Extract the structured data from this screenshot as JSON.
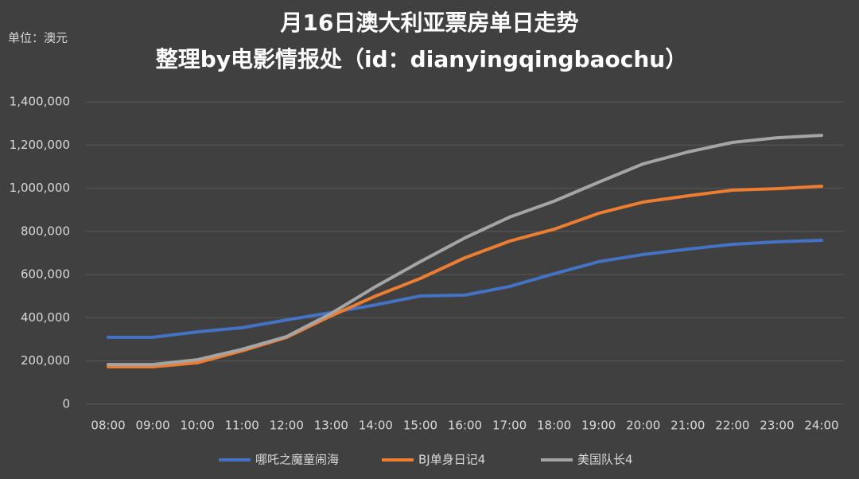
{
  "chart_data": {
    "type": "line",
    "title": "月16日澳大利亚票房单日走势",
    "subtitle": "整理by电影情报处（id：dianyingqingbaochu）",
    "unit_label": "单位：澳元",
    "categories": [
      "08:00",
      "09:00",
      "10:00",
      "11:00",
      "12:00",
      "13:00",
      "14:00",
      "15:00",
      "16:00",
      "17:00",
      "18:00",
      "19:00",
      "20:00",
      "21:00",
      "22:00",
      "23:00",
      "24:00"
    ],
    "series": [
      {
        "name": "哪吒之魔童闹海",
        "color": "#4472c4",
        "values": [
          310000,
          310000,
          335000,
          354000,
          390000,
          424000,
          460000,
          501000,
          505000,
          545000,
          604000,
          660000,
          693000,
          718000,
          740000,
          752000,
          759000
        ]
      },
      {
        "name": "BJ单身日记4",
        "color": "#ed7d31",
        "values": [
          173000,
          173000,
          192000,
          247000,
          309000,
          409000,
          501000,
          582000,
          678000,
          755000,
          810000,
          884000,
          936000,
          965000,
          991000,
          998000,
          1009000
        ]
      },
      {
        "name": "美国队长4",
        "color": "#a5a5a5",
        "values": [
          184000,
          184000,
          206000,
          254000,
          313000,
          420000,
          545000,
          660000,
          770000,
          866000,
          940000,
          1028000,
          1113000,
          1168000,
          1212000,
          1234000,
          1245000
        ]
      }
    ],
    "ylim": [
      0,
      1400000
    ],
    "yticks": [
      0,
      {
        "value": 200000,
        "label": "200,000"
      },
      {
        "value": 400000,
        "label": "400,000"
      },
      {
        "value": 600000,
        "label": "600,000"
      },
      {
        "value": 800000,
        "label": "800,000"
      },
      {
        "value": 1000000,
        "label": "1,000,000"
      },
      {
        "value": 1200000,
        "label": "1,200,000"
      },
      {
        "value": 1400000,
        "label": "1,400,000"
      }
    ],
    "grid": true,
    "legend": "bottom"
  }
}
